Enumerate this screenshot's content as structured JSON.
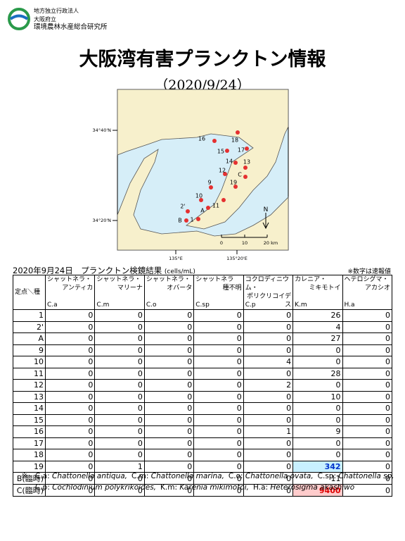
{
  "header": {
    "org": [
      "地方独立行政法人",
      "大阪府立",
      "環境農林水産総合研究所"
    ],
    "title": "大阪湾有害プランクトン情報",
    "date": "（2020/9/24）"
  },
  "map": {
    "stations": [
      "16",
      "18",
      "15",
      "17",
      "14",
      "13",
      "12",
      "C",
      "9",
      "19",
      "10",
      "11",
      "2'",
      "A",
      "B",
      "1"
    ],
    "lat_labels": [
      "34°40'N",
      "34°20'N"
    ],
    "lon_labels": [
      "135°E",
      "135°20'E"
    ],
    "scale_labels": [
      "0",
      "10",
      "20 km"
    ],
    "north": "N"
  },
  "table": {
    "caption": "2020年9月24日　プランクトン検鏡結果",
    "unit": "(cells/mL)",
    "note": "※数字は速報値",
    "corner": "定点＼種",
    "columns": [
      {
        "name": [
          "シャットネラ・",
          "アンティカ"
        ],
        "code": "C.a"
      },
      {
        "name": [
          "シャットネラ・",
          "マリーナ"
        ],
        "code": "C.m"
      },
      {
        "name": [
          "シャットネラ・",
          "オバータ"
        ],
        "code": "C.o"
      },
      {
        "name": [
          "シャットネラ",
          "種不明"
        ],
        "code": "C.sp"
      },
      {
        "name": [
          "コクロディニウム・",
          "ポリクリコイデス"
        ],
        "code": "C.p"
      },
      {
        "name": [
          "カレニア・",
          "ミキモトイ"
        ],
        "code": "K.m"
      },
      {
        "name": [
          "ヘテロシグマ・",
          "アカシオ"
        ],
        "code": "H.a"
      }
    ],
    "rows": [
      {
        "station": "1",
        "values": [
          0,
          0,
          0,
          0,
          0,
          26,
          0
        ]
      },
      {
        "station": "2'",
        "values": [
          0,
          0,
          0,
          0,
          0,
          4,
          0
        ]
      },
      {
        "station": "A",
        "values": [
          0,
          0,
          0,
          0,
          0,
          27,
          0
        ]
      },
      {
        "station": "9",
        "values": [
          0,
          0,
          0,
          0,
          0,
          0,
          0
        ]
      },
      {
        "station": "10",
        "values": [
          0,
          0,
          0,
          0,
          4,
          0,
          0
        ]
      },
      {
        "station": "11",
        "values": [
          0,
          0,
          0,
          0,
          0,
          28,
          0
        ]
      },
      {
        "station": "12",
        "values": [
          0,
          0,
          0,
          0,
          2,
          0,
          0
        ]
      },
      {
        "station": "13",
        "values": [
          0,
          0,
          0,
          0,
          0,
          10,
          0
        ]
      },
      {
        "station": "14",
        "values": [
          0,
          0,
          0,
          0,
          0,
          0,
          0
        ]
      },
      {
        "station": "15",
        "values": [
          0,
          0,
          0,
          0,
          0,
          0,
          0
        ]
      },
      {
        "station": "16",
        "values": [
          0,
          0,
          0,
          0,
          1,
          9,
          0
        ]
      },
      {
        "station": "17",
        "values": [
          0,
          0,
          0,
          0,
          0,
          0,
          0
        ]
      },
      {
        "station": "18",
        "values": [
          0,
          0,
          0,
          0,
          0,
          0,
          0
        ]
      },
      {
        "station": "19",
        "values": [
          0,
          1,
          0,
          0,
          0,
          342,
          0
        ]
      },
      {
        "station": "B(臨時)",
        "values": [
          0,
          0,
          0,
          0,
          0,
          11,
          0
        ]
      },
      {
        "station": "C(臨時)",
        "values": [
          0,
          0,
          0,
          0,
          0,
          9400,
          0
        ]
      }
    ]
  },
  "footnote": {
    "mark": "※",
    "lines": [
      [
        {
          "abbr": "C.a:",
          "name": "Chattonella antiqua,"
        },
        {
          "abbr": "C.m:",
          "name": "Chattonella marina,"
        },
        {
          "abbr": "C.o:",
          "name": "Chattonella ovata,"
        },
        {
          "abbr": "C.sp:",
          "name": "Chattonella sp."
        }
      ],
      [
        {
          "abbr": "C.p:",
          "name": "Cochlodinium polykrikoides,"
        },
        {
          "abbr": "K.m:",
          "name": "Karenia mikimotoi,"
        },
        {
          "abbr": "H.a:",
          "name": "Heterosigma akashiwo"
        }
      ]
    ]
  }
}
